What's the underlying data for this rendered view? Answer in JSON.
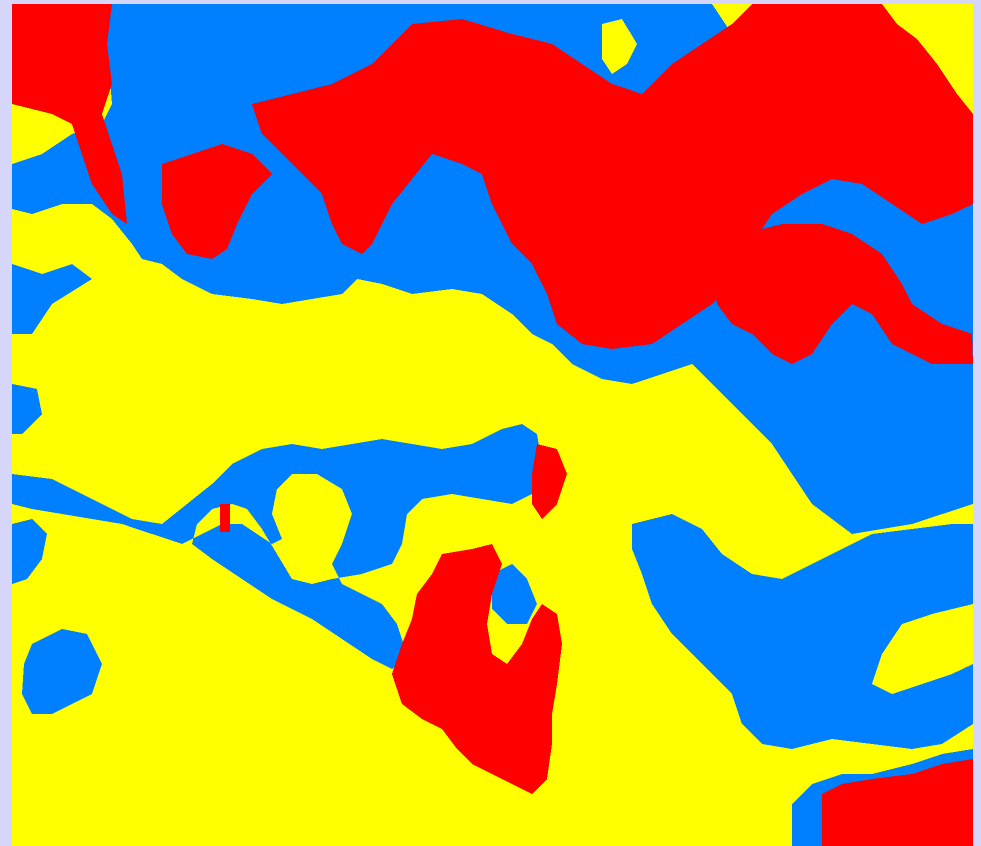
{
  "map": {
    "type": "categorical-raster",
    "palette": {
      "class_a": "#ffff00",
      "class_b": "#0080ff",
      "class_c": "#ff0000"
    },
    "background_color": "#d6d6fb",
    "pixelated": true
  }
}
